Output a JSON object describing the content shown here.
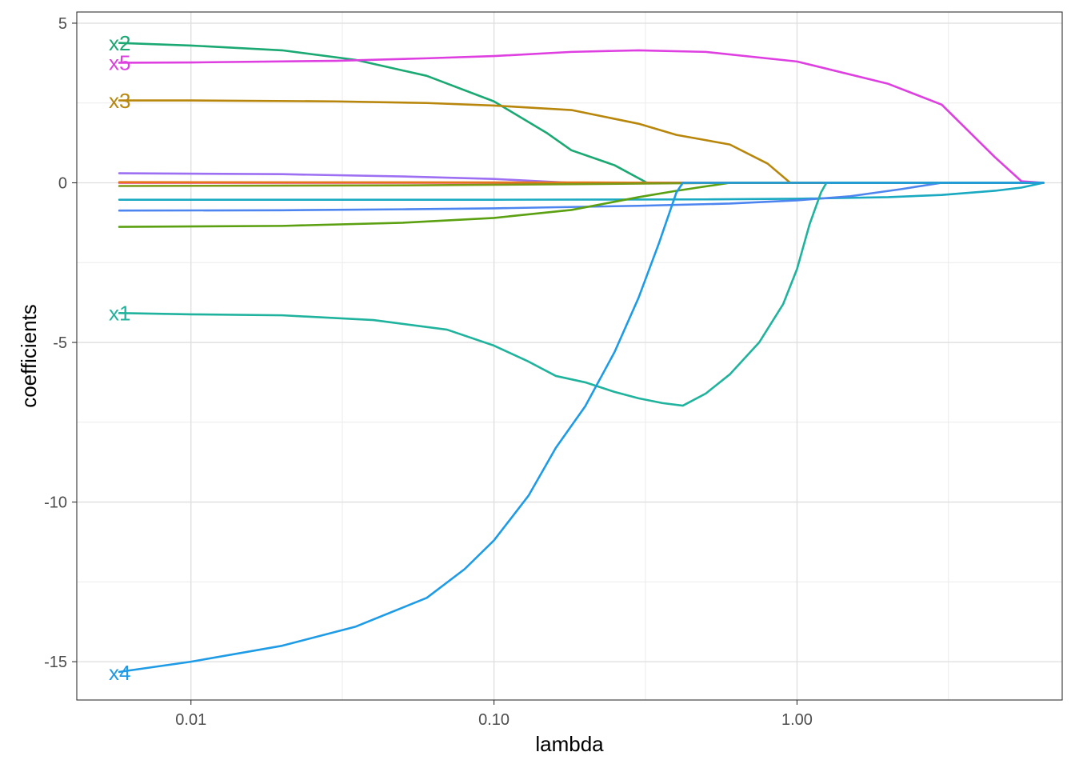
{
  "chart_data": {
    "type": "line",
    "title": "",
    "xlabel": "lambda",
    "ylabel": "coefficients",
    "x_scale": "log10",
    "xlim": [
      0.0042,
      7.5
    ],
    "ylim": [
      -16.2,
      5.35
    ],
    "x_ticks": [
      {
        "value": 0.01,
        "label": "0.01"
      },
      {
        "value": 0.1,
        "label": "0.10"
      },
      {
        "value": 1,
        "label": "1.00"
      }
    ],
    "x_minor_ticks": [
      0.0316,
      0.316,
      3.16
    ],
    "y_ticks": [
      {
        "value": 5,
        "label": "5"
      },
      {
        "value": 0,
        "label": "0"
      },
      {
        "value": -5,
        "label": "-5"
      },
      {
        "value": -10,
        "label": "-10"
      },
      {
        "value": -15,
        "label": "-15"
      }
    ],
    "y_minor_ticks": [
      2.5,
      -2.5,
      -7.5,
      -12.5
    ],
    "grid": true,
    "background": "#ffffff",
    "series": [
      {
        "name": "x2",
        "color": "#1aa873",
        "label": "x2",
        "label_value": 4.37,
        "points": [
          [
            0.0058,
            4.38
          ],
          [
            0.01,
            4.3
          ],
          [
            0.02,
            4.15
          ],
          [
            0.035,
            3.85
          ],
          [
            0.06,
            3.35
          ],
          [
            0.1,
            2.55
          ],
          [
            0.15,
            1.55
          ],
          [
            0.18,
            1.02
          ],
          [
            0.25,
            0.55
          ],
          [
            0.32,
            0.0
          ],
          [
            6.5,
            0.0
          ]
        ]
      },
      {
        "name": "x5",
        "color": "#de3fe0",
        "label": "x5",
        "label_value": 3.76,
        "points": [
          [
            0.0058,
            3.76
          ],
          [
            0.01,
            3.77
          ],
          [
            0.03,
            3.82
          ],
          [
            0.06,
            3.9
          ],
          [
            0.1,
            3.97
          ],
          [
            0.18,
            4.1
          ],
          [
            0.3,
            4.15
          ],
          [
            0.5,
            4.1
          ],
          [
            1.0,
            3.8
          ],
          [
            2.0,
            3.1
          ],
          [
            3.0,
            2.45
          ],
          [
            4.5,
            0.8
          ],
          [
            5.5,
            0.05
          ],
          [
            6.5,
            0.0
          ]
        ]
      },
      {
        "name": "x3",
        "color": "#b8860b",
        "label": "x3",
        "label_value": 2.57,
        "points": [
          [
            0.0058,
            2.58
          ],
          [
            0.01,
            2.58
          ],
          [
            0.03,
            2.55
          ],
          [
            0.06,
            2.5
          ],
          [
            0.1,
            2.42
          ],
          [
            0.18,
            2.28
          ],
          [
            0.3,
            1.85
          ],
          [
            0.4,
            1.5
          ],
          [
            0.6,
            1.2
          ],
          [
            0.8,
            0.6
          ],
          [
            0.95,
            0.0
          ],
          [
            6.5,
            0.0
          ]
        ]
      },
      {
        "name": "",
        "color": "#9d6ff2",
        "label": "",
        "label_value": null,
        "points": [
          [
            0.0058,
            0.3
          ],
          [
            0.02,
            0.27
          ],
          [
            0.05,
            0.2
          ],
          [
            0.1,
            0.12
          ],
          [
            0.18,
            0.0
          ],
          [
            6.5,
            0.0
          ]
        ]
      },
      {
        "name": "",
        "color": "#eb3f7d",
        "label": "",
        "label_value": null,
        "points": [
          [
            0.0058,
            0.0
          ],
          [
            6.5,
            0.0
          ]
        ]
      },
      {
        "name": "",
        "color": "#e5741a",
        "label": "",
        "label_value": null,
        "points": [
          [
            0.0058,
            0.02
          ],
          [
            0.2,
            0.01
          ],
          [
            0.4,
            0.0
          ],
          [
            6.5,
            0.0
          ]
        ]
      },
      {
        "name": "",
        "color": "#7a9a15",
        "label": "",
        "label_value": null,
        "points": [
          [
            0.0058,
            -0.1
          ],
          [
            0.05,
            -0.08
          ],
          [
            0.2,
            -0.04
          ],
          [
            0.6,
            0.0
          ],
          [
            6.5,
            0.0
          ]
        ]
      },
      {
        "name": "",
        "color": "#19a9c0",
        "label": "",
        "label_value": null,
        "points": [
          [
            0.0058,
            -0.53
          ],
          [
            0.1,
            -0.53
          ],
          [
            0.5,
            -0.52
          ],
          [
            1.0,
            -0.5
          ],
          [
            2.0,
            -0.45
          ],
          [
            3.0,
            -0.38
          ],
          [
            4.5,
            -0.25
          ],
          [
            5.5,
            -0.15
          ],
          [
            6.5,
            0.0
          ]
        ]
      },
      {
        "name": "",
        "color": "#4d85f0",
        "label": "",
        "label_value": null,
        "points": [
          [
            0.0058,
            -0.87
          ],
          [
            0.02,
            -0.86
          ],
          [
            0.05,
            -0.83
          ],
          [
            0.1,
            -0.8
          ],
          [
            0.3,
            -0.72
          ],
          [
            0.6,
            -0.65
          ],
          [
            1.0,
            -0.55
          ],
          [
            1.5,
            -0.42
          ],
          [
            2.2,
            -0.2
          ],
          [
            3.0,
            0.0
          ],
          [
            6.5,
            0.0
          ]
        ]
      },
      {
        "name": "",
        "color": "#5aa010",
        "label": "",
        "label_value": null,
        "points": [
          [
            0.0058,
            -1.38
          ],
          [
            0.02,
            -1.35
          ],
          [
            0.05,
            -1.25
          ],
          [
            0.1,
            -1.1
          ],
          [
            0.18,
            -0.85
          ],
          [
            0.3,
            -0.45
          ],
          [
            0.4,
            -0.25
          ],
          [
            0.6,
            0.0
          ],
          [
            6.5,
            0.0
          ]
        ]
      },
      {
        "name": "x1",
        "color": "#1fb39e",
        "label": "x1",
        "label_value": -4.08,
        "points": [
          [
            0.0058,
            -4.08
          ],
          [
            0.01,
            -4.12
          ],
          [
            0.02,
            -4.15
          ],
          [
            0.04,
            -4.3
          ],
          [
            0.07,
            -4.6
          ],
          [
            0.1,
            -5.1
          ],
          [
            0.13,
            -5.6
          ],
          [
            0.16,
            -6.05
          ],
          [
            0.2,
            -6.25
          ],
          [
            0.25,
            -6.55
          ],
          [
            0.3,
            -6.75
          ],
          [
            0.36,
            -6.9
          ],
          [
            0.42,
            -6.98
          ],
          [
            0.5,
            -6.6
          ],
          [
            0.6,
            -6.0
          ],
          [
            0.75,
            -5.0
          ],
          [
            0.9,
            -3.8
          ],
          [
            1.0,
            -2.7
          ],
          [
            1.1,
            -1.3
          ],
          [
            1.2,
            -0.3
          ],
          [
            1.25,
            0.0
          ],
          [
            6.5,
            0.0
          ]
        ]
      },
      {
        "name": "x4",
        "color": "#1e9be6",
        "label": "x4",
        "label_value": -15.35,
        "points": [
          [
            0.0058,
            -15.32
          ],
          [
            0.01,
            -15.0
          ],
          [
            0.02,
            -14.5
          ],
          [
            0.035,
            -13.9
          ],
          [
            0.06,
            -13.0
          ],
          [
            0.08,
            -12.1
          ],
          [
            0.1,
            -11.2
          ],
          [
            0.13,
            -9.8
          ],
          [
            0.16,
            -8.3
          ],
          [
            0.2,
            -7.0
          ],
          [
            0.25,
            -5.3
          ],
          [
            0.3,
            -3.6
          ],
          [
            0.35,
            -1.9
          ],
          [
            0.4,
            -0.3
          ],
          [
            0.42,
            0.0
          ],
          [
            6.5,
            0.0
          ]
        ]
      }
    ]
  }
}
